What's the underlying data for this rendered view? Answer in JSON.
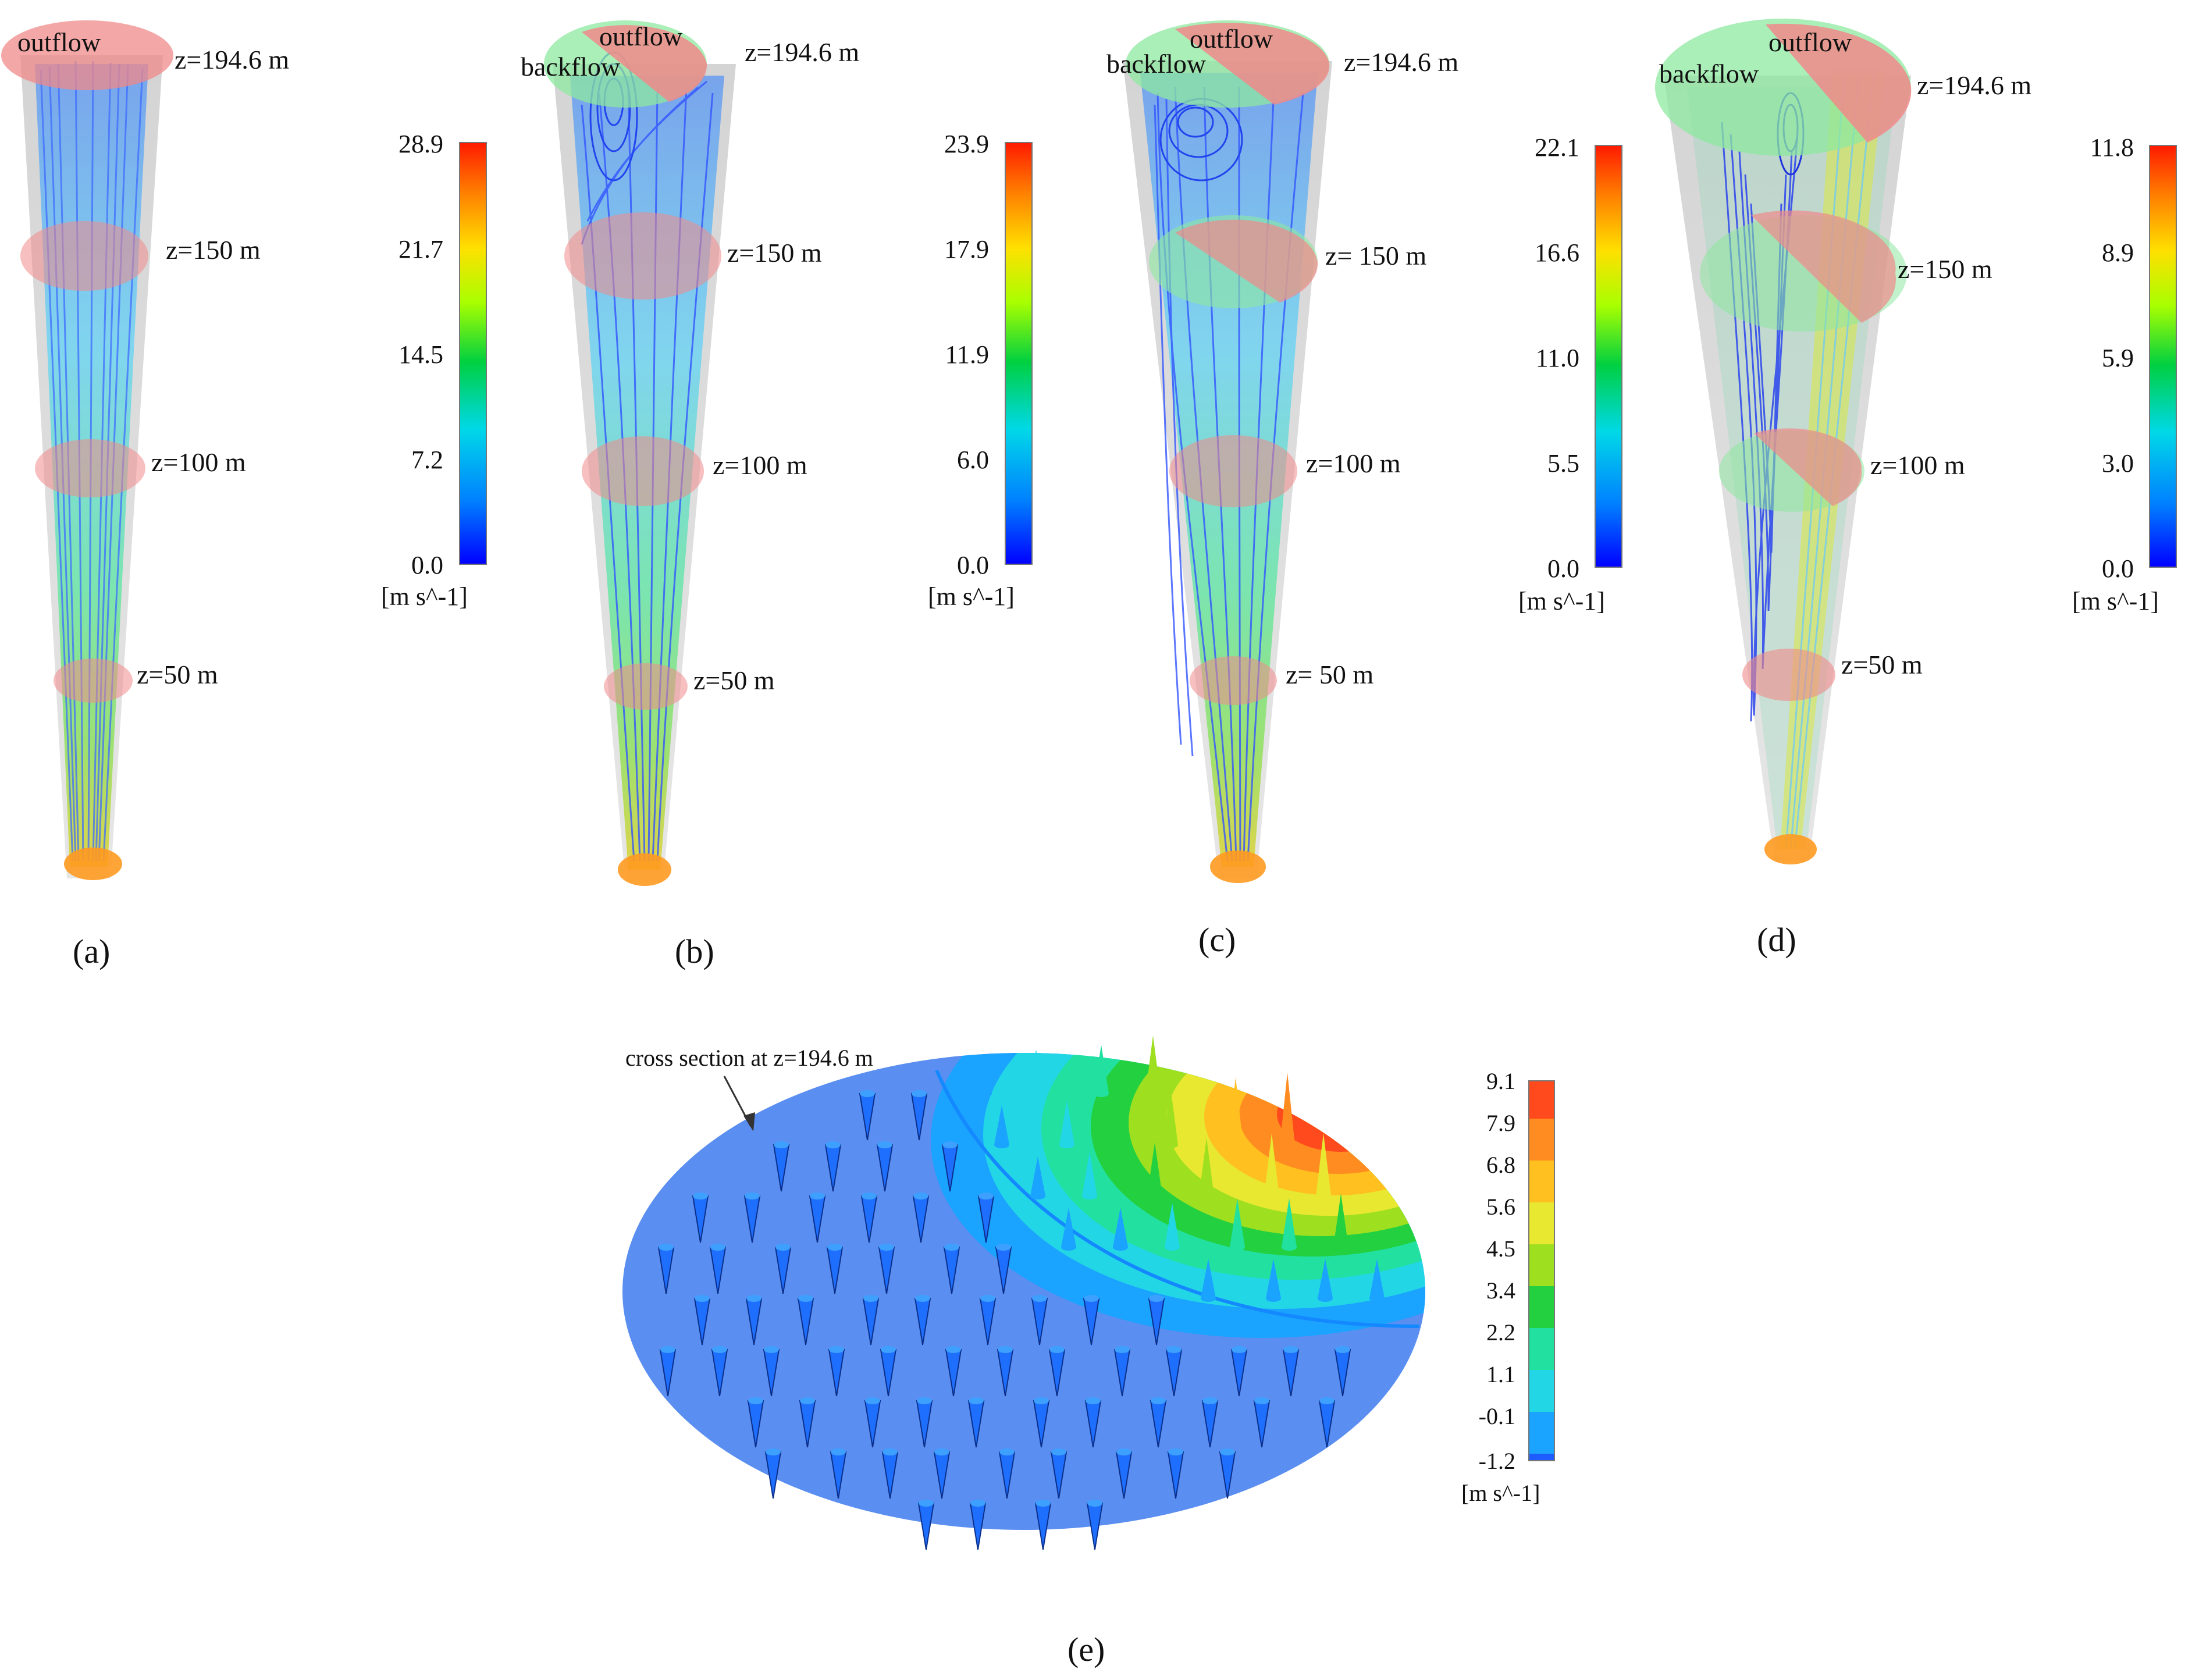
{
  "panels": [
    {
      "label": "(a)",
      "outflow_label": "outflow",
      "backflow_label": "",
      "z_labels": [
        "z=194.6 m",
        "z=150 m",
        "z=100 m",
        "z=50 m"
      ],
      "colorbar": {
        "ticks": [
          "28.9",
          "21.7",
          "14.5",
          "7.2",
          "0.0"
        ],
        "unit": "[m s^-1]"
      }
    },
    {
      "label": "(b)",
      "outflow_label": "outflow",
      "backflow_label": "backflow",
      "z_labels": [
        "z=194.6 m",
        "z=150 m",
        "z=100 m",
        "z=50 m"
      ],
      "colorbar": {
        "ticks": [
          "23.9",
          "17.9",
          "11.9",
          "6.0",
          "0.0"
        ],
        "unit": "[m s^-1]"
      }
    },
    {
      "label": "(c)",
      "outflow_label": "outflow",
      "backflow_label": "backflow",
      "z_labels": [
        "z=194.6 m",
        "z= 150 m",
        "z=100 m",
        "z= 50 m"
      ],
      "colorbar": {
        "ticks": [
          "22.1",
          "16.6",
          "11.0",
          "5.5",
          "0.0"
        ],
        "unit": "[m s^-1]"
      }
    },
    {
      "label": "(d)",
      "outflow_label": "outflow",
      "backflow_label": "backflow",
      "z_labels": [
        "z=194.6 m",
        "z=150 m",
        "z=100 m",
        "z=50 m"
      ],
      "colorbar": {
        "ticks": [
          "11.8",
          "8.9",
          "5.9",
          "3.0",
          "0.0"
        ],
        "unit": "[m s^-1]"
      }
    }
  ],
  "panel_e": {
    "label": "(e)",
    "annotation": "cross section at z=194.6 m",
    "colorbar": {
      "ticks": [
        "9.1",
        "7.9",
        "6.8",
        "5.6",
        "4.5",
        "3.4",
        "2.2",
        "1.1",
        "-0.1",
        "-1.2"
      ],
      "unit": "[m s^-1]"
    }
  },
  "colors": {
    "rainbow": [
      "#0000ff",
      "#00a0ff",
      "#00e0c0",
      "#00d040",
      "#c0ff00",
      "#ffd000",
      "#ff8000",
      "#ff2000"
    ],
    "contour": [
      "#1e5cff",
      "#1aa3ff",
      "#22d6e6",
      "#22e0a0",
      "#22d040",
      "#9ee020",
      "#e8e830",
      "#ffc020",
      "#ff8c20",
      "#ff4a1e"
    ],
    "plane_outflow": "#f08a8a",
    "plane_backflow": "#8ee8a0",
    "base_blue": "#5a8ef0"
  }
}
